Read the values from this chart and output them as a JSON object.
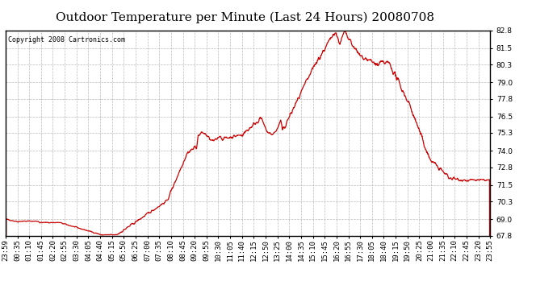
{
  "title": "Outdoor Temperature per Minute (Last 24 Hours) 20080708",
  "copyright_text": "Copyright 2008 Cartronics.com",
  "line_color": "#cc0000",
  "bg_color": "#ffffff",
  "plot_bg_color": "#ffffff",
  "grid_color": "#bbbbbb",
  "border_color": "#000000",
  "ylim": [
    67.8,
    82.8
  ],
  "yticks": [
    67.8,
    69.0,
    70.3,
    71.5,
    72.8,
    74.0,
    75.3,
    76.5,
    77.8,
    79.0,
    80.3,
    81.5,
    82.8
  ],
  "xtick_labels": [
    "23:59",
    "00:35",
    "01:10",
    "01:45",
    "02:20",
    "02:55",
    "03:30",
    "04:05",
    "04:40",
    "05:15",
    "05:50",
    "06:25",
    "07:00",
    "07:35",
    "08:10",
    "08:45",
    "09:20",
    "09:55",
    "10:30",
    "11:05",
    "11:40",
    "12:15",
    "12:50",
    "13:25",
    "14:00",
    "14:35",
    "15:10",
    "15:45",
    "16:20",
    "16:55",
    "17:30",
    "18:05",
    "18:40",
    "19:15",
    "19:50",
    "20:25",
    "21:00",
    "21:35",
    "22:10",
    "22:45",
    "23:20",
    "23:55"
  ],
  "title_fontsize": 11,
  "tick_fontsize": 6.5,
  "copyright_fontsize": 6,
  "line_width": 0.9
}
